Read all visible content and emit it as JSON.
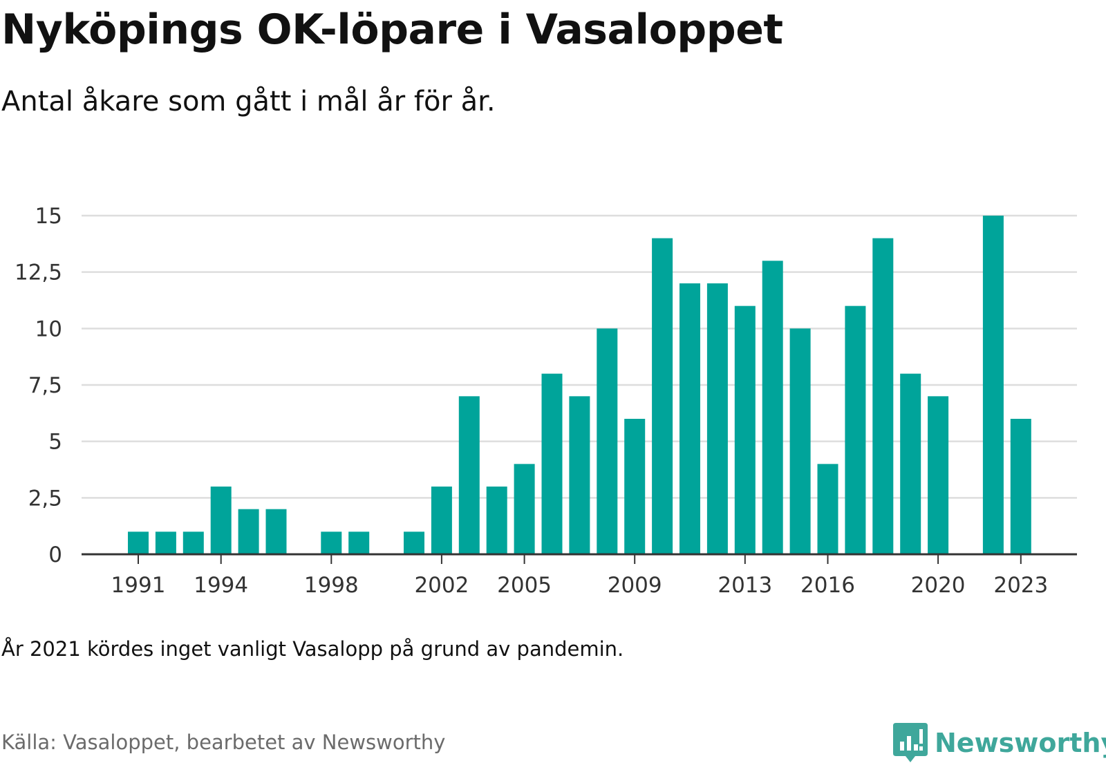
{
  "title": "Nyköpings OK-löpare i Vasaloppet",
  "subtitle": "Antal åkare som gått i mål år för år.",
  "note": "År 2021 kördes inget vanligt Vasalopp på grund av pandemin.",
  "source": "Källa: Vasaloppet, bearbetet av Newsworthy",
  "brand": {
    "name": "Newsworthy",
    "color": "#3fa79b"
  },
  "colors": {
    "bar": "#00a49a",
    "grid": "#dddddd",
    "axis": "#333333"
  },
  "chart_data": {
    "type": "bar",
    "categories": [
      1991,
      1992,
      1993,
      1994,
      1995,
      1996,
      1997,
      1998,
      1999,
      2000,
      2001,
      2002,
      2003,
      2004,
      2005,
      2006,
      2007,
      2008,
      2009,
      2010,
      2011,
      2012,
      2013,
      2014,
      2015,
      2016,
      2017,
      2018,
      2019,
      2020,
      2021,
      2022,
      2023
    ],
    "values": [
      1,
      1,
      1,
      3,
      2,
      2,
      0,
      1,
      1,
      0,
      1,
      3,
      7,
      3,
      4,
      8,
      7,
      10,
      6,
      14,
      12,
      12,
      11,
      13,
      10,
      4,
      11,
      14,
      8,
      7,
      0,
      15,
      6
    ],
    "ylim": [
      0,
      15
    ],
    "y_ticks": [
      0,
      2.5,
      5,
      7.5,
      10,
      12.5,
      15
    ],
    "y_tick_labels": [
      "0",
      "2,5",
      "5",
      "7,5",
      "10",
      "12,5",
      "15"
    ],
    "x_tick_labels": [
      "1991",
      "1994",
      "1998",
      "2002",
      "2005",
      "2009",
      "2013",
      "2016",
      "2020",
      "2023"
    ],
    "grid": true,
    "xlabel": "",
    "ylabel": ""
  }
}
